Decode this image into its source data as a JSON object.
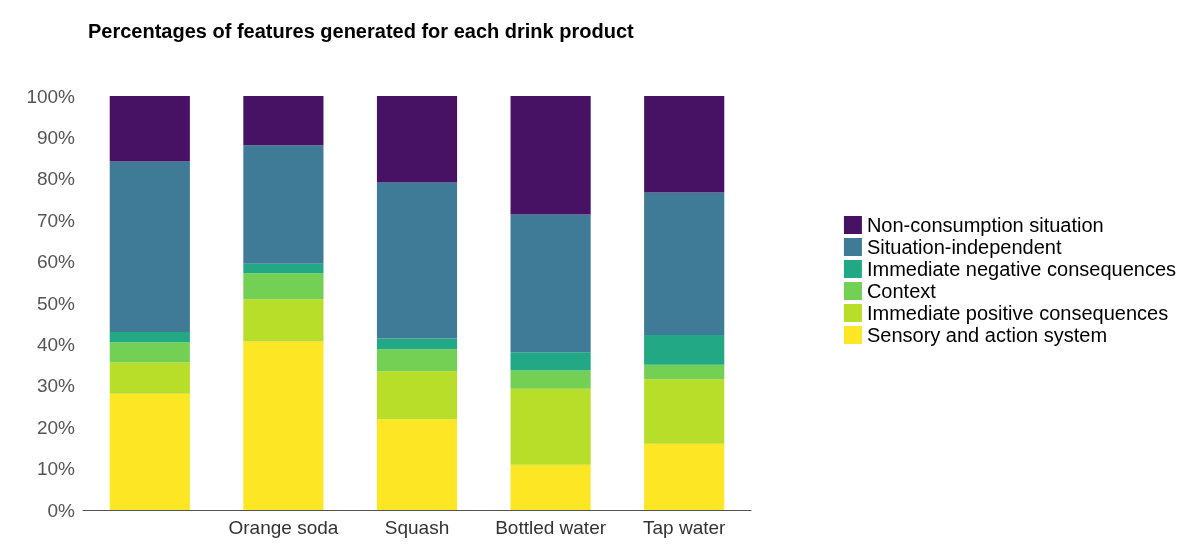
{
  "chart_data": {
    "type": "bar",
    "title": "Percentages of features generated for each drink product",
    "categories": [
      null,
      "Orange soda",
      "Squash",
      "Bottled water",
      "Tap water"
    ],
    "stacked": true,
    "legend": "right",
    "grid": false,
    "ylim": [
      0,
      100
    ],
    "yticks": [
      {
        "value": 0,
        "label": "0%"
      },
      {
        "value": 10,
        "label": "10%"
      },
      {
        "value": 20,
        "label": "20%"
      },
      {
        "value": 30,
        "label": "30%"
      },
      {
        "value": 40,
        "label": "40%"
      },
      {
        "value": 50,
        "label": "50%"
      },
      {
        "value": 60,
        "label": "60%"
      },
      {
        "value": 70,
        "label": "70%"
      },
      {
        "value": 80,
        "label": "80%"
      },
      {
        "value": 90,
        "label": "90%"
      },
      {
        "value": 100,
        "label": "100%"
      }
    ],
    "series": [
      {
        "name": "Sensory and action system",
        "color": "#fde725",
        "values": [
          28.1,
          40.7,
          21.9,
          10.9,
          16.0
        ]
      },
      {
        "name": "Immediate positive consequences",
        "color": "#b8de29",
        "values": [
          7.5,
          10.2,
          11.6,
          18.4,
          15.6
        ]
      },
      {
        "name": "Context",
        "color": "#74d055",
        "values": [
          4.9,
          6.3,
          5.3,
          4.4,
          3.5
        ]
      },
      {
        "name": "Immediate negative consequences",
        "color": "#22a884",
        "values": [
          2.5,
          2.3,
          2.6,
          4.4,
          7.2
        ]
      },
      {
        "name": "Situation-independent",
        "color": "#3f7a96",
        "values": [
          41.2,
          28.6,
          37.7,
          33.3,
          34.4
        ]
      },
      {
        "name": "Non-consumption situation",
        "color": "#471164",
        "values": [
          15.8,
          11.9,
          20.9,
          28.6,
          23.3
        ]
      }
    ]
  }
}
